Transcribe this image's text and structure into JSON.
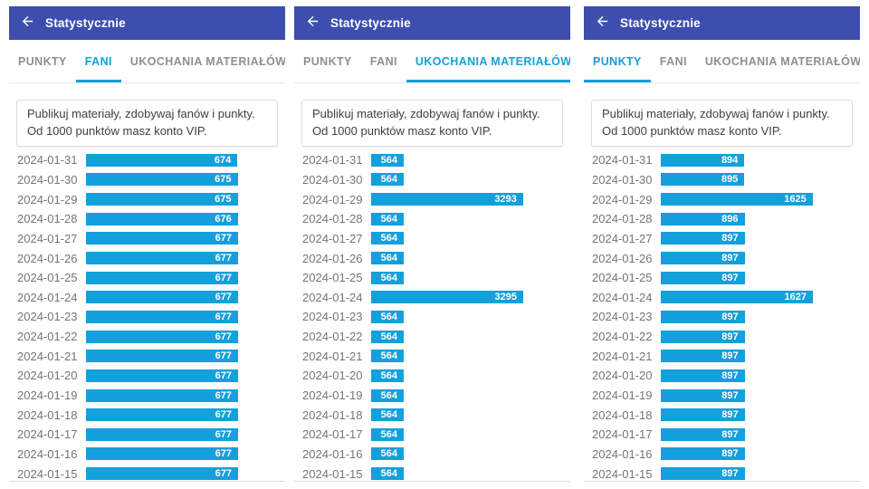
{
  "app": {
    "header_title": "Statystycznie",
    "back_icon": "arrow-left"
  },
  "tabs": [
    "PUNKTY",
    "FANI",
    "UKOCHANIA MATERIAŁÓW"
  ],
  "info_text": "Publikuj materiały, zdobywaj fanów i punkty. Od 1000 punktów masz konto VIP.",
  "colors": {
    "header": "#3E4EAE",
    "accent": "#14A0DC",
    "tab_inactive": "#8F8F8F",
    "date_text": "#757575"
  },
  "panels": [
    {
      "active_tab_index": 1
    },
    {
      "active_tab_index": 2
    },
    {
      "active_tab_index": 0
    }
  ],
  "chart_data": [
    {
      "type": "bar",
      "orientation": "horizontal",
      "title": "FANI",
      "categories": [
        "2024-01-31",
        "2024-01-30",
        "2024-01-29",
        "2024-01-28",
        "2024-01-27",
        "2024-01-26",
        "2024-01-25",
        "2024-01-24",
        "2024-01-23",
        "2024-01-22",
        "2024-01-21",
        "2024-01-20",
        "2024-01-19",
        "2024-01-18",
        "2024-01-17",
        "2024-01-16",
        "2024-01-15"
      ],
      "values": [
        674,
        675,
        675,
        676,
        677,
        677,
        677,
        677,
        677,
        677,
        677,
        677,
        677,
        677,
        677,
        677,
        677
      ],
      "value_labels": "inside-end",
      "xlim": [
        0,
        677
      ]
    },
    {
      "type": "bar",
      "orientation": "horizontal",
      "title": "UKOCHANIA MATERIAŁÓW",
      "categories": [
        "2024-01-31",
        "2024-01-30",
        "2024-01-29",
        "2024-01-28",
        "2024-01-27",
        "2024-01-26",
        "2024-01-25",
        "2024-01-24",
        "2024-01-23",
        "2024-01-22",
        "2024-01-21",
        "2024-01-20",
        "2024-01-19",
        "2024-01-18",
        "2024-01-17",
        "2024-01-16",
        "2024-01-15"
      ],
      "values": [
        564,
        564,
        3293,
        564,
        564,
        564,
        564,
        3295,
        564,
        564,
        564,
        564,
        564,
        564,
        564,
        564,
        564
      ],
      "value_labels": "inside-end",
      "xlim": [
        0,
        3295
      ]
    },
    {
      "type": "bar",
      "orientation": "horizontal",
      "title": "PUNKTY",
      "categories": [
        "2024-01-31",
        "2024-01-30",
        "2024-01-29",
        "2024-01-28",
        "2024-01-27",
        "2024-01-26",
        "2024-01-25",
        "2024-01-24",
        "2024-01-23",
        "2024-01-22",
        "2024-01-21",
        "2024-01-20",
        "2024-01-19",
        "2024-01-18",
        "2024-01-17",
        "2024-01-16",
        "2024-01-15"
      ],
      "values": [
        894,
        895,
        1625,
        896,
        897,
        897,
        897,
        1627,
        897,
        897,
        897,
        897,
        897,
        897,
        897,
        897,
        897
      ],
      "value_labels": "inside-end",
      "xlim": [
        0,
        1627
      ]
    }
  ]
}
